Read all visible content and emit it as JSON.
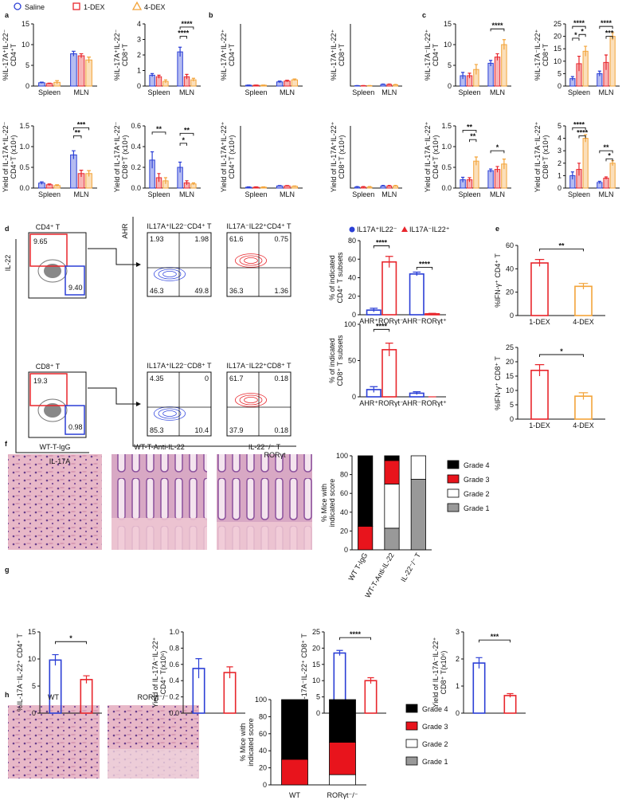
{
  "panel_labels": [
    "a",
    "b",
    "c",
    "d",
    "e",
    "f",
    "g",
    "h"
  ],
  "legend": {
    "series": [
      {
        "name": "Saline",
        "color": "#2b3fd6"
      },
      {
        "name": "1-DEX",
        "color": "#e8262c"
      },
      {
        "name": "4-DEX",
        "color": "#f3a43a"
      }
    ]
  },
  "chart_data": [
    {
      "type": "bar",
      "ylabel": [
        "%IL-17A⁺IL-22⁻",
        "CD4⁺T"
      ],
      "categories": [
        "Spleen",
        "MLN"
      ],
      "series": [
        {
          "color": "#2b3fd6",
          "values": [
            0.8,
            7.8
          ],
          "errors": [
            0.15,
            0.6
          ]
        },
        {
          "color": "#e8262c",
          "values": [
            0.6,
            7.3
          ],
          "errors": [
            0.1,
            0.5
          ]
        },
        {
          "color": "#f3a43a",
          "values": [
            0.9,
            6.3
          ],
          "errors": [
            0.4,
            0.7
          ]
        }
      ],
      "ylim": [
        0,
        15
      ],
      "yticks": [
        0,
        5,
        10,
        15
      ],
      "annotations": []
    },
    {
      "type": "bar",
      "ylabel": [
        "%IL-17A⁺IL-22⁻",
        "CD8⁺T"
      ],
      "categories": [
        "Spleen",
        "MLN"
      ],
      "series": [
        {
          "color": "#2b3fd6",
          "values": [
            0.7,
            2.2
          ],
          "errors": [
            0.1,
            0.3
          ]
        },
        {
          "color": "#e8262c",
          "values": [
            0.6,
            0.6
          ],
          "errors": [
            0.1,
            0.15
          ]
        },
        {
          "color": "#f3a43a",
          "values": [
            0.3,
            0.4
          ],
          "errors": [
            0.1,
            0.1
          ]
        }
      ],
      "ylim": [
        0,
        4
      ],
      "yticks": [
        0,
        1,
        2,
        3,
        4
      ],
      "annotations": [
        "****",
        "****"
      ]
    },
    {
      "type": "bar",
      "ylabel": [
        "Yield of IL-17A⁺IL-22⁻",
        "CD4⁺T (x10⁴)"
      ],
      "categories": [
        "Spleen",
        "MLN"
      ],
      "series": [
        {
          "color": "#2b3fd6",
          "values": [
            0.12,
            0.8
          ],
          "errors": [
            0.03,
            0.1
          ]
        },
        {
          "color": "#e8262c",
          "values": [
            0.08,
            0.35
          ],
          "errors": [
            0.02,
            0.08
          ]
        },
        {
          "color": "#f3a43a",
          "values": [
            0.06,
            0.35
          ],
          "errors": [
            0.02,
            0.07
          ]
        }
      ],
      "ylim": [
        0,
        1.5
      ],
      "yticks": [
        {
          "value": 0,
          "label": "0.0"
        },
        0.5,
        {
          "value": 1,
          "label": "1.0"
        },
        1.5
      ],
      "annotations": [
        "***",
        "**"
      ]
    },
    {
      "type": "bar",
      "ylabel": [
        "Yield of IL-17A⁺IL-22⁻",
        "CD8⁺T (x10⁴)"
      ],
      "categories": [
        "Spleen",
        "MLN"
      ],
      "series": [
        {
          "color": "#2b3fd6",
          "values": [
            0.27,
            0.2
          ],
          "errors": [
            0.08,
            0.05
          ]
        },
        {
          "color": "#e8262c",
          "values": [
            0.1,
            0.05
          ],
          "errors": [
            0.04,
            0.02
          ]
        },
        {
          "color": "#f3a43a",
          "values": [
            0.07,
            0.04
          ],
          "errors": [
            0.03,
            0.01
          ]
        }
      ],
      "ylim": [
        0,
        0.6
      ],
      "yticks": [
        {
          "value": 0,
          "label": "0.0"
        },
        0.2,
        0.4,
        0.6
      ],
      "annotations": [
        "**",
        "**",
        "*"
      ]
    },
    {
      "type": "bar",
      "ylabel": [
        "%IL-17A⁺IL-22⁺",
        "CD4⁺T"
      ],
      "categories": [
        "Spleen",
        "MLN"
      ],
      "series": [
        {
          "color": "#2b3fd6",
          "values": [
            0.2,
            1.0
          ],
          "errors": [
            0.05,
            0.2
          ]
        },
        {
          "color": "#e8262c",
          "values": [
            0.2,
            1.2
          ],
          "errors": [
            0.05,
            0.2
          ]
        },
        {
          "color": "#f3a43a",
          "values": [
            0.2,
            1.5
          ],
          "errors": [
            0.05,
            0.2
          ]
        }
      ],
      "ylim": [
        0,
        15
      ],
      "annotations": []
    },
    {
      "type": "bar",
      "ylabel": [
        "%IL-17A⁺IL-22⁺",
        "CD8⁺T"
      ],
      "categories": [
        "Spleen",
        "MLN"
      ],
      "series": [
        {
          "color": "#2b3fd6",
          "values": [
            0.1,
            0.4
          ],
          "errors": [
            0.03,
            0.08
          ]
        },
        {
          "color": "#e8262c",
          "values": [
            0.1,
            0.4
          ],
          "errors": [
            0.03,
            0.08
          ]
        },
        {
          "color": "#f3a43a",
          "values": [
            0.1,
            0.3
          ],
          "errors": [
            0.03,
            0.08
          ]
        }
      ],
      "ylim": [
        0,
        15
      ],
      "annotations": []
    },
    {
      "type": "bar",
      "ylabel": [
        "Yield of IL-17A⁺IL-22⁺",
        "CD4⁺T (x10⁴)"
      ],
      "categories": [
        "Spleen",
        "MLN"
      ],
      "series": [
        {
          "color": "#2b3fd6",
          "values": [
            0.02,
            0.05
          ],
          "errors": [
            0.01,
            0.01
          ]
        },
        {
          "color": "#e8262c",
          "values": [
            0.02,
            0.05
          ],
          "errors": [
            0.01,
            0.01
          ]
        },
        {
          "color": "#f3a43a",
          "values": [
            0.02,
            0.04
          ],
          "errors": [
            0.01,
            0.01
          ]
        }
      ],
      "ylim": [
        0,
        1.5
      ],
      "annotations": []
    },
    {
      "type": "bar",
      "ylabel": [
        "Yield of IL-17A⁺IL-22⁺",
        "CD8⁺T (x10⁴)"
      ],
      "categories": [
        "Spleen",
        "MLN"
      ],
      "series": [
        {
          "color": "#2b3fd6",
          "values": [
            0.01,
            0.02
          ],
          "errors": [
            0.005,
            0.005
          ]
        },
        {
          "color": "#e8262c",
          "values": [
            0.01,
            0.02
          ],
          "errors": [
            0.005,
            0.005
          ]
        },
        {
          "color": "#f3a43a",
          "values": [
            0.01,
            0.02
          ],
          "errors": [
            0.005,
            0.005
          ]
        }
      ],
      "ylim": [
        0,
        0.6
      ],
      "annotations": []
    },
    {
      "type": "bar",
      "ylabel": [
        "%IL-17A⁻IL-22⁺",
        "CD4⁺T"
      ],
      "categories": [
        "Spleen",
        "MLN"
      ],
      "series": [
        {
          "color": "#2b3fd6",
          "values": [
            2.5,
            5.5
          ],
          "errors": [
            0.8,
            0.7
          ]
        },
        {
          "color": "#e8262c",
          "values": [
            2.5,
            7
          ],
          "errors": [
            0.6,
            0.8
          ]
        },
        {
          "color": "#f3a43a",
          "values": [
            4,
            10
          ],
          "errors": [
            1.2,
            1.2
          ]
        }
      ],
      "ylim": [
        0,
        15
      ],
      "yticks": [
        0,
        5,
        10,
        15
      ],
      "annotations": [
        "****"
      ]
    },
    {
      "type": "bar",
      "ylabel": [
        "%IL-17A⁻IL-22⁺",
        "CD8⁺T"
      ],
      "categories": [
        "Spleen",
        "MLN"
      ],
      "series": [
        {
          "color": "#2b3fd6",
          "values": [
            3,
            5
          ],
          "errors": [
            0.8,
            1
          ]
        },
        {
          "color": "#e8262c",
          "values": [
            9,
            9.5
          ],
          "errors": [
            3,
            3
          ]
        },
        {
          "color": "#f3a43a",
          "values": [
            14,
            20
          ],
          "errors": [
            2,
            1.5
          ]
        }
      ],
      "ylim": [
        0,
        25
      ],
      "yticks": [
        0,
        5,
        10,
        15,
        20,
        25
      ],
      "annotations": [
        "****",
        "*",
        "*",
        "****",
        "***"
      ]
    },
    {
      "type": "bar",
      "ylabel": [
        "Yield of IL-17A⁻IL-22⁺",
        "CD4⁺T (x10⁴)"
      ],
      "categories": [
        "Spleen",
        "MLN"
      ],
      "series": [
        {
          "color": "#2b3fd6",
          "values": [
            0.2,
            0.42
          ],
          "errors": [
            0.06,
            0.04
          ]
        },
        {
          "color": "#e8262c",
          "values": [
            0.2,
            0.45
          ],
          "errors": [
            0.05,
            0.07
          ]
        },
        {
          "color": "#f3a43a",
          "values": [
            0.65,
            0.58
          ],
          "errors": [
            0.1,
            0.12
          ]
        }
      ],
      "ylim": [
        0,
        1.5
      ],
      "yticks": [
        {
          "value": 0,
          "label": "0.0"
        },
        0.5,
        {
          "value": 1,
          "label": "1.0"
        },
        1.5
      ],
      "annotations": [
        "**",
        "**",
        "*"
      ]
    },
    {
      "type": "bar",
      "ylabel": [
        "Yield of IL-17A⁻IL-22⁺",
        "CD8⁺T (x10⁴)"
      ],
      "categories": [
        "Spleen",
        "MLN"
      ],
      "series": [
        {
          "color": "#2b3fd6",
          "values": [
            1.0,
            0.45
          ],
          "errors": [
            0.3,
            0.1
          ]
        },
        {
          "color": "#e8262c",
          "values": [
            1.5,
            0.8
          ],
          "errors": [
            0.5,
            0.1
          ]
        },
        {
          "color": "#f3a43a",
          "values": [
            4.0,
            2.0
          ],
          "errors": [
            0.3,
            0.2
          ]
        }
      ],
      "ylim": [
        0,
        5
      ],
      "yticks": [
        0,
        1,
        2,
        3,
        4,
        5
      ],
      "annotations": [
        "****",
        "****",
        "**",
        "*"
      ]
    },
    {
      "type": "bar",
      "ylabel": [
        "% of indicated",
        "CD4⁺ T subsets"
      ],
      "categories": [
        "AHR⁺RORγt⁻",
        "AHR⁻RORγt⁺"
      ],
      "series": [
        {
          "name": "IL17A⁺IL22⁻",
          "color": "#2b3fd6",
          "values": [
            5,
            44
          ],
          "errors": [
            2,
            2
          ]
        },
        {
          "name": "IL17A⁻IL22⁺",
          "color": "#e8262c",
          "values": [
            57,
            1
          ],
          "errors": [
            6,
            0.5
          ]
        }
      ],
      "ylim": [
        0,
        80
      ],
      "yticks": [
        0,
        20,
        40,
        60,
        80
      ],
      "annotations": [
        "****",
        "****"
      ]
    },
    {
      "type": "bar",
      "ylabel": [
        "% of indicated",
        "CD8⁺ T subsets"
      ],
      "categories": [
        "AHR⁺RORγt⁻",
        "AHR⁻RORγt⁺"
      ],
      "series": [
        {
          "color": "#2b3fd6",
          "values": [
            10,
            5
          ],
          "errors": [
            4,
            2
          ]
        },
        {
          "color": "#e8262c",
          "values": [
            65,
            0
          ],
          "errors": [
            9,
            0
          ]
        }
      ],
      "ylim": [
        0,
        100
      ],
      "yticks": [
        0,
        50,
        100
      ],
      "annotations": [
        "****"
      ]
    },
    {
      "type": "bar",
      "ylabel": [
        "%IFN-γ⁺ CD4⁺ T"
      ],
      "categories": [
        "1-DEX",
        "4-DEX"
      ],
      "values": [
        45,
        25
      ],
      "errors": [
        3,
        2.5
      ],
      "colors": [
        "#e8262c",
        "#f3a43a"
      ],
      "ylim": [
        0,
        60
      ],
      "yticks": [
        0,
        20,
        40,
        60
      ],
      "annotations": [
        "**"
      ]
    },
    {
      "type": "bar",
      "ylabel": [
        "%IFN-γ⁺ CD8⁺ T"
      ],
      "categories": [
        "1-DEX",
        "4-DEX"
      ],
      "values": [
        17,
        8
      ],
      "errors": [
        2,
        1.2
      ],
      "colors": [
        "#e8262c",
        "#f3a43a"
      ],
      "ylim": [
        0,
        25
      ],
      "yticks": [
        0,
        5,
        10,
        15,
        20,
        25
      ],
      "annotations": [
        "*"
      ]
    },
    {
      "type": "stacked_bar",
      "ylabel": [
        "% Mice with",
        "indicated score"
      ],
      "categories": [
        "WT T-IgG",
        "WT-T-Anti-IL-22",
        "IL-22⁻/⁻ T"
      ],
      "series": [
        {
          "name": "Grade 4",
          "color": "#000000",
          "values": [
            75,
            5,
            0
          ]
        },
        {
          "name": "Grade 3",
          "color": "#e8141c",
          "values": [
            25,
            25,
            0
          ]
        },
        {
          "name": "Grade 2",
          "color": "#ffffff",
          "values": [
            0,
            47,
            25
          ]
        },
        {
          "name": "Grade 1",
          "color": "#999999",
          "values": [
            0,
            23,
            75
          ]
        }
      ],
      "ylim": [
        0,
        100
      ],
      "yticks": [
        0,
        20,
        40,
        60,
        80,
        100
      ],
      "annotations": []
    },
    {
      "type": "bar",
      "ylabel": [
        "%IL-17A⁻IL-22⁺ CD4⁺ T"
      ],
      "categories": [
        null,
        null
      ],
      "values": [
        9.8,
        6.2
      ],
      "errors": [
        1,
        0.7
      ],
      "colors": [
        "#2b3fd6",
        "#e8262c"
      ],
      "ylim": [
        0,
        15
      ],
      "yticks": [
        0,
        5,
        10,
        15
      ],
      "annotations": [
        "*"
      ]
    },
    {
      "type": "bar",
      "ylabel": [
        "Yield of IL-17A⁻IL-22⁺",
        "CD4⁺ T(x10⁶)"
      ],
      "categories": [
        null,
        null
      ],
      "values": [
        0.55,
        0.5
      ],
      "errors": [
        0.12,
        0.07
      ],
      "colors": [
        "#2b3fd6",
        "#e8262c"
      ],
      "ylim": [
        0,
        1
      ],
      "yticks": [
        {
          "value": 0,
          "label": "0.0"
        },
        0.2,
        0.4,
        0.6,
        0.8,
        {
          "value": 1,
          "label": "1.0"
        }
      ],
      "annotations": []
    },
    {
      "type": "bar",
      "ylabel": [
        "%IL-17A⁻IL-22⁺ CD8⁺ T"
      ],
      "categories": [
        null,
        null
      ],
      "values": [
        18.5,
        10
      ],
      "errors": [
        0.8,
        0.9
      ],
      "colors": [
        "#2b3fd6",
        "#e8262c"
      ],
      "ylim": [
        0,
        25
      ],
      "yticks": [
        0,
        5,
        10,
        15,
        20,
        25
      ],
      "annotations": [
        "****"
      ]
    },
    {
      "type": "bar",
      "ylabel": [
        "Yield of IL-17A⁻IL-22⁺",
        "CD8⁺ T(x10⁶)"
      ],
      "categories": [
        null,
        null
      ],
      "values": [
        1.85,
        0.65
      ],
      "errors": [
        0.2,
        0.07
      ],
      "colors": [
        "#2b3fd6",
        "#e8262c"
      ],
      "ylim": [
        0,
        3
      ],
      "yticks": [
        0,
        1,
        2,
        3
      ],
      "annotations": [
        "***"
      ]
    },
    {
      "type": "stacked_bar",
      "ylabel": [
        "% Mice with",
        "indicated score"
      ],
      "categories": [
        "WT",
        "RORγt⁻/⁻"
      ],
      "series": [
        {
          "name": "Grade 4",
          "color": "#000000",
          "values": [
            70,
            50
          ]
        },
        {
          "name": "Grade 3",
          "color": "#e8141c",
          "values": [
            30,
            38
          ]
        },
        {
          "name": "Grade 2",
          "color": "#ffffff",
          "values": [
            0,
            12
          ]
        },
        {
          "name": "Grade 1",
          "color": "#999999",
          "values": [
            0,
            0
          ]
        }
      ],
      "ylim": [
        0,
        100
      ],
      "yticks": [
        0,
        20,
        40,
        60,
        80,
        100
      ],
      "annotations": []
    }
  ],
  "flow": {
    "gate_plots": [
      {
        "title": "CD4⁺ T",
        "gates": [
          "9.65",
          "9.40"
        ]
      },
      {
        "title": "CD8⁺ T",
        "gates": [
          "19.3",
          "0.98"
        ]
      }
    ],
    "gate_ylabel": "IL-22",
    "gate_xlabel": "IL-17A",
    "quadrant_plots": [
      {
        "title": "IL17A⁺IL22⁻CD4⁺ T",
        "quadrants": [
          "1.93",
          "1.98",
          "46.3",
          "49.8"
        ]
      },
      {
        "title": "IL17A⁻IL22⁺CD4⁺ T",
        "quadrants": [
          "61.6",
          "0.75",
          "36.3",
          "1.36"
        ]
      },
      {
        "title": "IL17A⁺IL22⁻CD8⁺ T",
        "quadrants": [
          "4.35",
          "0",
          "85.3",
          "10.4"
        ]
      },
      {
        "title": "IL17A⁻IL22⁺CD8⁺ T",
        "quadrants": [
          "61.7",
          "0.18",
          "37.9",
          "0.18"
        ]
      }
    ],
    "quad_ylabel": "AHR",
    "quad_xlabel": "RORγt"
  },
  "histology": {
    "f": [
      "WT-T-IgG",
      "WT-T-Anti-IL-22",
      "IL-22⁻/⁻ T"
    ],
    "h": [
      "WT",
      "RORγt⁻/⁻"
    ]
  }
}
